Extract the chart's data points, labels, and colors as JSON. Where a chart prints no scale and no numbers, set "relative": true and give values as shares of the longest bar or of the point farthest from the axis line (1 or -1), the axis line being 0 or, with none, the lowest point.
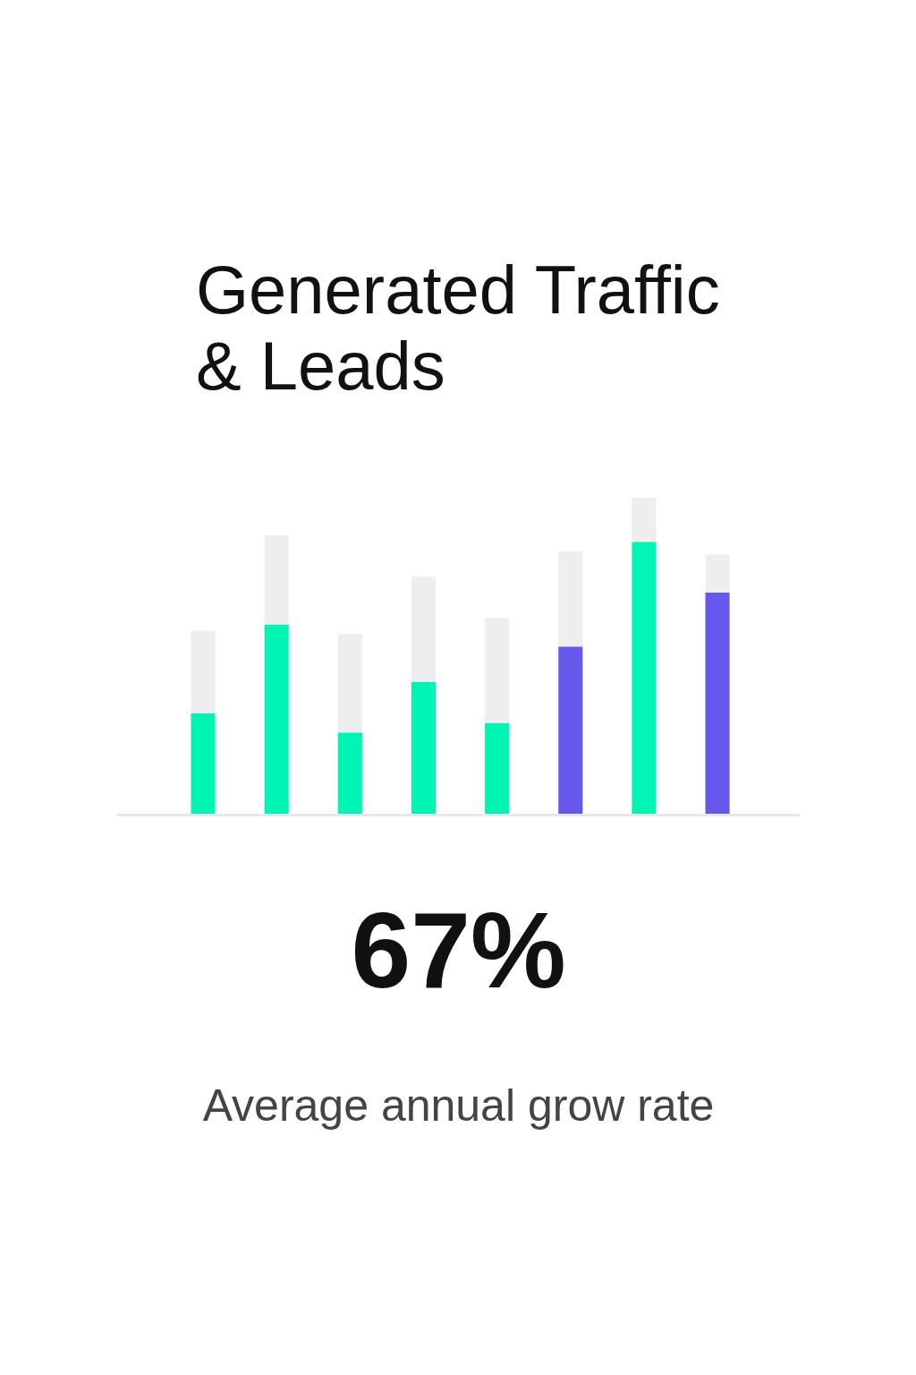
{
  "chart_data": {
    "type": "bar",
    "title": "Generated Traffic & Leads",
    "categories": [
      null,
      null,
      null,
      null,
      null,
      null,
      null,
      null
    ],
    "relative": true,
    "stacked": true,
    "grid": false,
    "legend": false,
    "series": [
      {
        "colors": [
          "#00f5b4",
          "#00f5b4",
          "#00f5b4",
          "#00f5b4",
          "#00f5b4",
          "#6658ea",
          "#00f5b4",
          "#6658ea"
        ],
        "values": [
          0.32,
          0.6,
          0.26,
          0.42,
          0.29,
          0.53,
          0.86,
          0.7
        ]
      },
      {
        "color": "#eeeeee",
        "values": [
          0.26,
          0.28,
          0.31,
          0.33,
          0.33,
          0.3,
          0.14,
          0.12
        ]
      }
    ],
    "annotations": [
      "67%",
      "Average annual grow rate"
    ]
  }
}
